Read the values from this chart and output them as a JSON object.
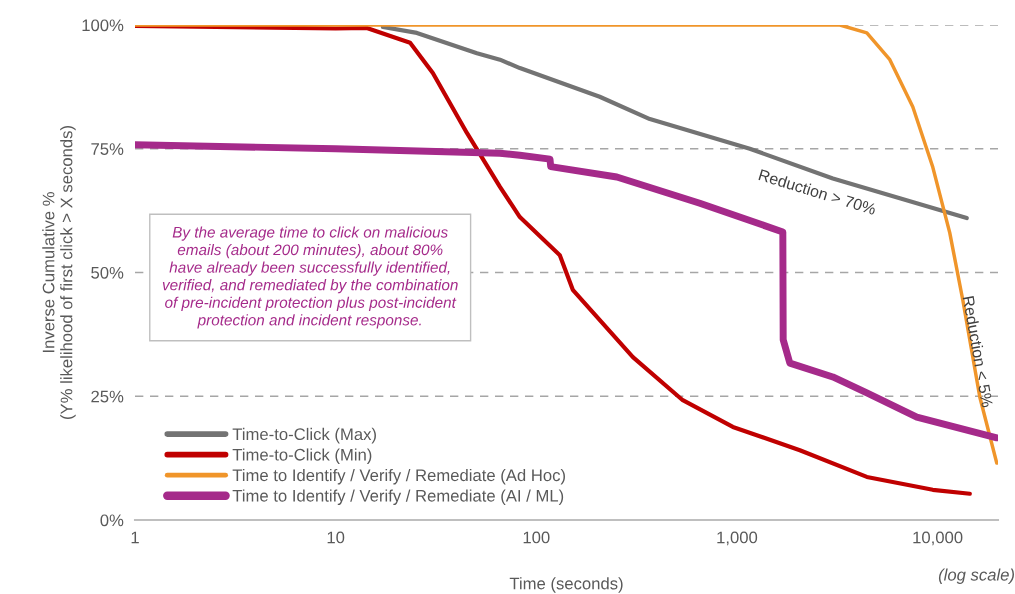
{
  "chart_data": {
    "type": "line",
    "xlabel": "Time (seconds)",
    "ylabel": "Inverse Cumulative %\n(Y% likelihood of first click > X seconds)",
    "log": "x",
    "xlim": [
      1,
      20000
    ],
    "xticks": [
      1,
      10,
      100,
      {
        "value": 1000,
        "label": "1,000"
      },
      {
        "value": 10000,
        "label": "10,000"
      }
    ],
    "ylim": [
      0,
      100
    ],
    "yticks": [
      {
        "value": 0,
        "label": "0%"
      },
      {
        "value": 25,
        "label": "25%"
      },
      {
        "value": 50,
        "label": "50%"
      },
      {
        "value": 75,
        "label": "75%"
      },
      {
        "value": 100,
        "label": "100%"
      }
    ],
    "grid": "y",
    "legend": "bottom left",
    "series": [
      {
        "name": "Time-to-Click (Max)",
        "color": "#737373",
        "x": [
          17.2,
          25.4,
          50.6,
          65.9,
          82.8,
          207,
          368,
          1159,
          3006,
          6480,
          13970
        ],
        "values": [
          99.6,
          98.4,
          94.3,
          93,
          91.3,
          85.5,
          81,
          75,
          69,
          65,
          61
        ]
      },
      {
        "name": "Time-to-Click (Min)",
        "color": "#c00000",
        "x": [
          1,
          10,
          14.3,
          23.5,
          30.5,
          45.1,
          65.9,
          82.8,
          131,
          152,
          303,
          537,
          954,
          2058,
          4440,
          9460,
          14470
        ],
        "values": [
          99.8,
          99.3,
          99.4,
          96.4,
          90.3,
          78.2,
          67.3,
          61.2,
          53.5,
          46.5,
          32.9,
          24.2,
          18.8,
          14.1,
          8.7,
          6.1,
          5.3
        ]
      },
      {
        "name": "Time to Identify / Verify / Remediate (Ad Hoc)",
        "color": "#f0952a",
        "x": [
          1,
          3260,
          4440,
          5780,
          7520,
          9460,
          11500,
          13360,
          16240,
          19720
        ],
        "values": [
          100,
          100,
          98.4,
          93,
          83.5,
          71.3,
          58,
          44.4,
          24.8,
          11.5
        ]
      },
      {
        "name": "Time to Identify / Verify / Remediate (AI / ML)",
        "color": "#a52a8a",
        "x": [
          1,
          10,
          65.9,
          82.8,
          117,
          118,
          252,
          653,
          1693,
          1700,
          1835,
          3006,
          4440,
          7880,
          19720
        ],
        "values": [
          75.8,
          75,
          74.1,
          73.7,
          72.9,
          71.4,
          69.3,
          64,
          58.2,
          36.4,
          31.7,
          28.9,
          25.7,
          20.8,
          16.6
        ]
      }
    ],
    "annotations": [
      "By the average time to click on malicious emails (about 200 minutes), about 80% have already been successfully identified, verified, and remediated by the combination of pre-incident protection plus post-incident protection and incident response.",
      "Reduction > 70%",
      "Reduction < 5%",
      "(log scale)"
    ]
  }
}
